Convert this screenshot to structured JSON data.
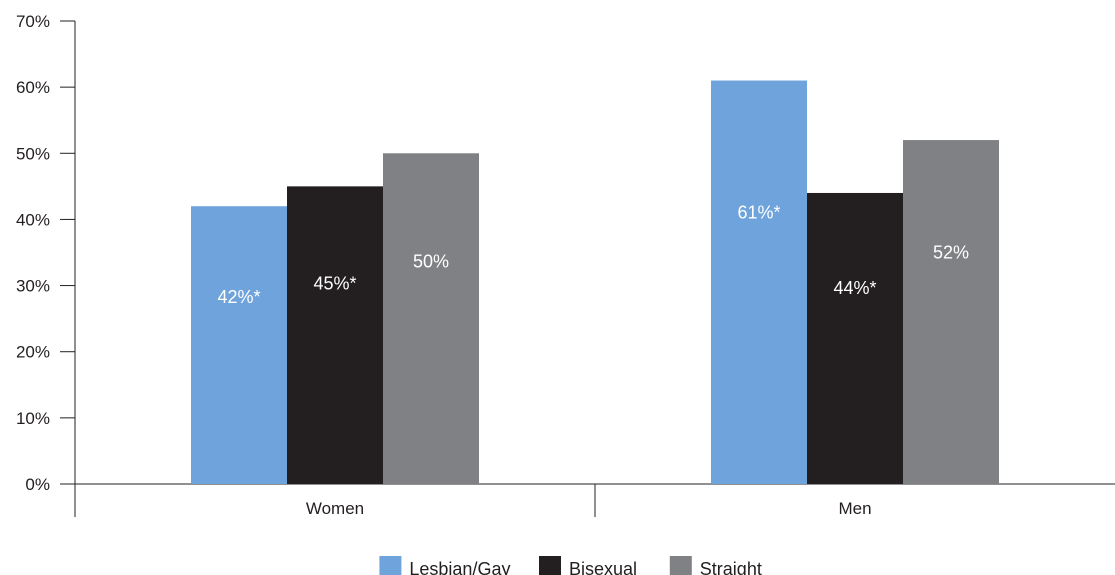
{
  "chart_data": {
    "type": "bar",
    "categories": [
      "Women",
      "Men"
    ],
    "series": [
      {
        "name": "Lesbian/Gay",
        "color": "#6fa3dc",
        "values": [
          42,
          61
        ],
        "labels": [
          "42%*",
          "61%*"
        ]
      },
      {
        "name": "Bisexual",
        "color": "#231f20",
        "values": [
          45,
          44
        ],
        "labels": [
          "45%*",
          "44%*"
        ]
      },
      {
        "name": "Straight",
        "color": "#808184",
        "values": [
          50,
          52
        ],
        "labels": [
          "50%",
          "52%"
        ]
      }
    ],
    "ylim": [
      0,
      70
    ],
    "yticks": [
      0,
      10,
      20,
      30,
      40,
      50,
      60,
      70
    ],
    "ytick_labels": [
      "0%",
      "10%",
      "20%",
      "30%",
      "40%",
      "50%",
      "60%",
      "70%"
    ],
    "grid": false,
    "legend_position": "bottom-center",
    "title": "",
    "xlabel": "",
    "ylabel": ""
  }
}
